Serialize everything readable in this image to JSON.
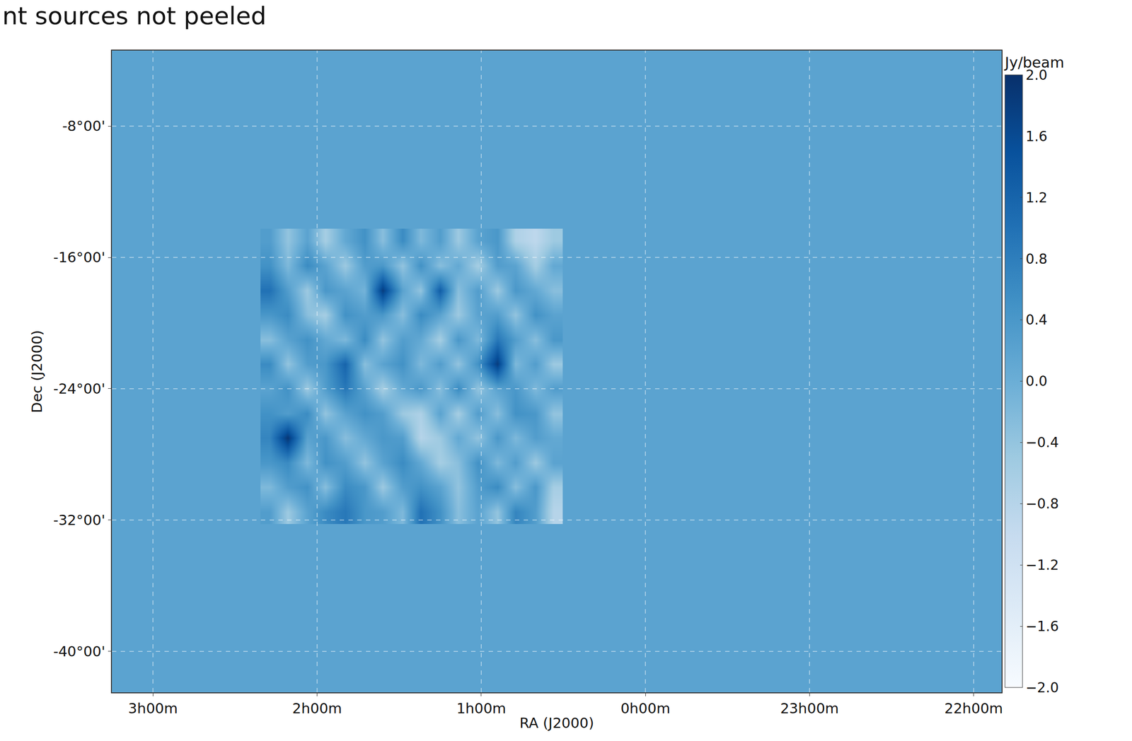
{
  "chart_data": {
    "type": "heatmap",
    "title": "nt sources not peeled",
    "xlabel": "RA (J2000)",
    "ylabel": "Dec (J2000)",
    "xlim": [
      3.25,
      -2.17
    ],
    "ylim": [
      -42.5,
      -3.4
    ],
    "xticks": [
      {
        "value": 3,
        "label": "3h00m"
      },
      {
        "value": 2,
        "label": "2h00m"
      },
      {
        "value": 1,
        "label": "1h00m"
      },
      {
        "value": 0,
        "label": "0h00m"
      },
      {
        "value": -1,
        "label": "23h00m"
      },
      {
        "value": -2,
        "label": "22h00m"
      }
    ],
    "yticks": [
      {
        "value": -8,
        "label": "-8°00'"
      },
      {
        "value": -16,
        "label": "-16°00'"
      },
      {
        "value": -24,
        "label": "-24°00'"
      },
      {
        "value": -32,
        "label": "-32°00'"
      },
      {
        "value": -40,
        "label": "-40°00'"
      }
    ],
    "grid": true,
    "background": 0.2,
    "colorbar": {
      "title": "Jy/beam",
      "range": [
        -2,
        2
      ],
      "ticks": [
        {
          "value": 2,
          "label": "2.0"
        },
        1.6,
        1.2,
        0.8,
        0.4,
        {
          "value": 0,
          "label": "0.0"
        },
        {
          "value": -0.4,
          "label": "−0.4"
        },
        {
          "value": -0.8,
          "label": "−0.8"
        },
        {
          "value": -1.2,
          "label": "−1.2"
        },
        {
          "value": -1.6,
          "label": "−1.6"
        },
        {
          "value": -2,
          "label": "−2.0"
        }
      ]
    },
    "x": [
      2.29,
      2.18,
      2.06,
      1.95,
      1.83,
      1.71,
      1.6,
      1.48,
      1.37,
      1.25,
      1.14,
      1.02,
      0.9,
      0.79,
      0.67,
      0.56
    ],
    "y": [
      -31.5,
      -30.0,
      -28.5,
      -27.0,
      -25.5,
      -24.0,
      -22.5,
      -21.0,
      -19.5,
      -18.0,
      -16.5,
      -15.0
    ],
    "z": [
      [
        0.3,
        -0.5,
        0.2,
        0.6,
        0.9,
        0.4,
        0.3,
        -0.2,
        1.0,
        0.5,
        -0.3,
        0.2,
        -0.4,
        0.7,
        0.3,
        -0.8
      ],
      [
        -0.2,
        0.3,
        0.5,
        -0.3,
        0.6,
        0.4,
        -0.5,
        0.3,
        0.5,
        0.2,
        -0.4,
        0.3,
        0.6,
        -0.3,
        0.4,
        -0.6
      ],
      [
        0.4,
        0.6,
        -0.2,
        0.5,
        0.3,
        -0.4,
        0.2,
        0.6,
        0.1,
        -0.6,
        -0.3,
        0.5,
        -0.2,
        0.3,
        -0.5,
        0.2
      ],
      [
        0.7,
        1.9,
        0.2,
        0.4,
        -0.3,
        0.1,
        0.4,
        0.3,
        -0.8,
        -0.5,
        0.1,
        -0.4,
        0.4,
        -0.2,
        0.3,
        0.1
      ],
      [
        0.5,
        0.3,
        0.6,
        -0.4,
        0.2,
        0.5,
        0.3,
        -0.5,
        -0.7,
        0.2,
        -0.6,
        0.3,
        -0.3,
        0.5,
        0.4,
        -0.4
      ],
      [
        0.2,
        0.5,
        -0.5,
        0.3,
        0.9,
        0.2,
        -0.6,
        0.1,
        0.4,
        -0.3,
        0.6,
        -0.4,
        0.2,
        0.4,
        -0.2,
        0.3
      ],
      [
        0.6,
        -0.4,
        0.3,
        0.4,
        1.2,
        -0.3,
        0.2,
        0.5,
        -0.2,
        0.3,
        -0.4,
        0.5,
        1.8,
        -0.2,
        0.3,
        -0.5
      ],
      [
        -0.3,
        0.2,
        0.5,
        0.1,
        -0.2,
        0.6,
        -0.4,
        0.3,
        0.1,
        -0.6,
        0.4,
        -0.2,
        0.9,
        0.3,
        -0.3,
        0.4
      ],
      [
        0.4,
        0.6,
        -0.3,
        -0.6,
        0.5,
        0.3,
        0.4,
        -0.3,
        0.6,
        0.2,
        -0.5,
        0.2,
        0.3,
        -0.4,
        0.5,
        0.2
      ],
      [
        1.0,
        0.3,
        -0.5,
        0.4,
        0.2,
        -0.1,
        1.8,
        0.2,
        -0.4,
        1.3,
        -0.3,
        0.3,
        -0.5,
        0.4,
        0.1,
        -0.3
      ],
      [
        0.5,
        -0.2,
        0.6,
        0.2,
        -0.5,
        0.3,
        0.4,
        -0.4,
        0.5,
        -0.3,
        0.1,
        -0.6,
        0.3,
        0.2,
        -0.6,
        0.1
      ],
      [
        0.3,
        -0.4,
        0.2,
        -0.6,
        0.1,
        0.5,
        -0.3,
        0.6,
        -0.2,
        0.3,
        -0.5,
        0.2,
        0.4,
        -0.7,
        -0.9,
        -0.5
      ]
    ]
  }
}
